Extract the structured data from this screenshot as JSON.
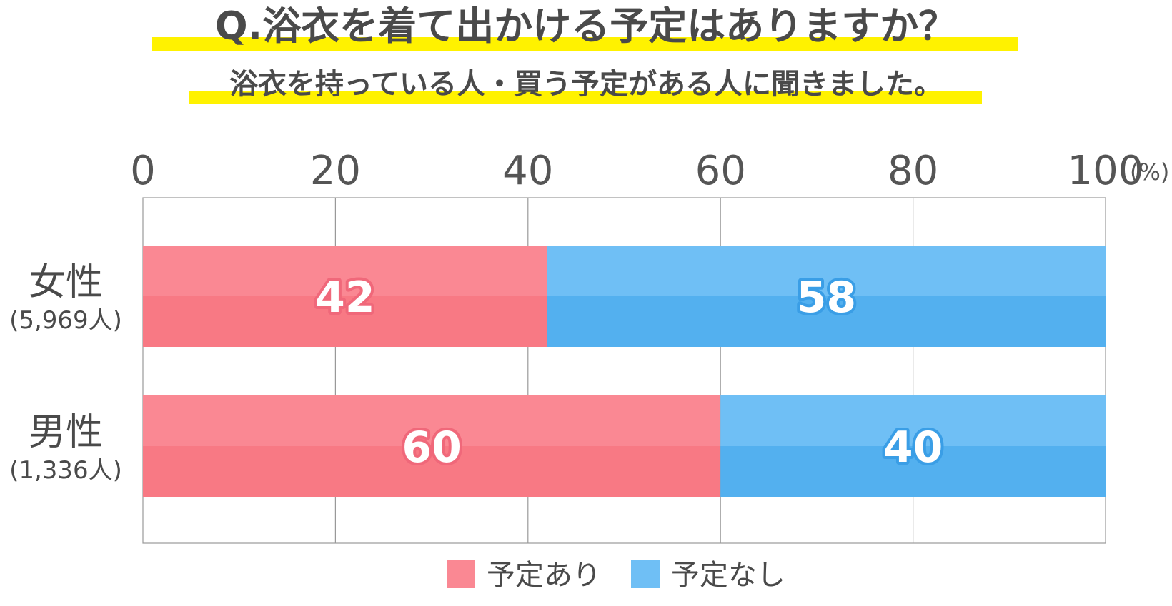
{
  "title": "Q.浴衣を着て出かける予定はありますか？",
  "subtitle": "浴衣を持っている人・買う予定がある人に聞きました。",
  "colors": {
    "highlight": "#fff200",
    "series_yes_light": "#fa8893",
    "series_yes_dark": "#f87984",
    "series_yes_outline": "#f0687a",
    "series_no_light": "#6fbff5",
    "series_no_dark": "#53b0ef",
    "series_no_outline": "#3a9ee6",
    "grid": "#999999",
    "text": "#4a4a4a"
  },
  "chart_data": {
    "type": "bar",
    "orientation": "horizontal",
    "stacked": true,
    "categories": [
      "女性",
      "男性"
    ],
    "category_sublabels": [
      "(5,969人)",
      "(1,336人)"
    ],
    "series": [
      {
        "name": "予定あり",
        "values": [
          42,
          60
        ]
      },
      {
        "name": "予定なし",
        "values": [
          58,
          40
        ]
      }
    ],
    "xlim": [
      0,
      100
    ],
    "xticks": [
      "0",
      "20",
      "40",
      "60",
      "80",
      "100"
    ],
    "xunit": "(%)",
    "grid": true,
    "legend_position": "bottom"
  }
}
